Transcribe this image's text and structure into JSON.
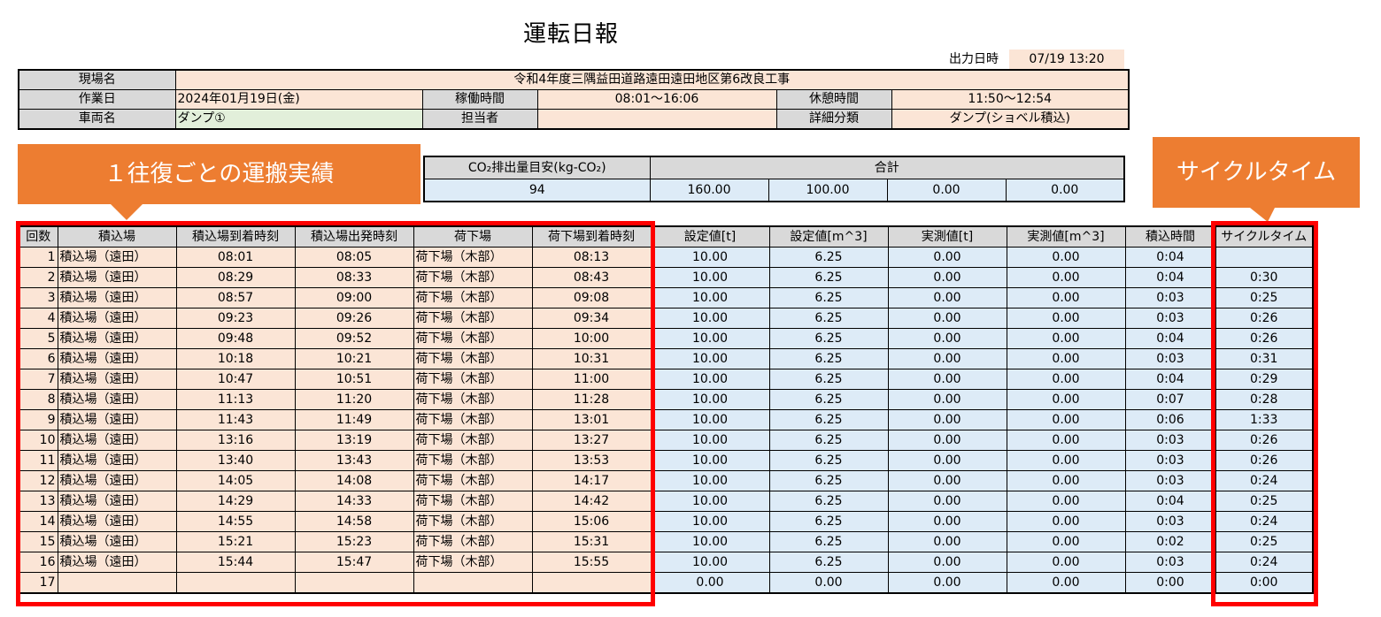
{
  "title": "運転日報",
  "output": {
    "label": "出力日時",
    "value": "07/19 13:20"
  },
  "info": {
    "site_label": "現場名",
    "site_value": "令和4年度三隅益田道路遠田遠田地区第6改良工事",
    "workday_label": "作業日",
    "workday_value": "2024年01月19日(金)",
    "operating_label": "稼働時間",
    "operating_value": "08:01～16:06",
    "rest_label": "休憩時間",
    "rest_value": "11:50～12:54",
    "vehicle_label": "車両名",
    "vehicle_value": "ダンプ①",
    "person_label": "担当者",
    "person_value": "",
    "category_label": "詳細分類",
    "category_value": "ダンプ(ショベル積込)"
  },
  "co2": {
    "label": "CO₂排出量目安(kg-CO₂)",
    "value": "94",
    "total_label": "合計",
    "totals": [
      "160.00",
      "100.00",
      "0.00",
      "0.00"
    ]
  },
  "callouts": {
    "left": "１往復ごとの運搬実績",
    "right": "サイクルタイム"
  },
  "table": {
    "headers": [
      "回数",
      "積込場",
      "積込場到着時刻",
      "積込場出発時刻",
      "荷下場",
      "荷下場到着時刻",
      "設定値[t]",
      "設定値[m^3]",
      "実測値[t]",
      "実測値[m^3]",
      "積込時間",
      "サイクルタイム"
    ],
    "rows": [
      [
        "1",
        "積込場（遠田）",
        "08:01",
        "08:05",
        "荷下場（木部）",
        "08:13",
        "10.00",
        "6.25",
        "0.00",
        "0.00",
        "0:04",
        ""
      ],
      [
        "2",
        "積込場（遠田）",
        "08:29",
        "08:33",
        "荷下場（木部）",
        "08:43",
        "10.00",
        "6.25",
        "0.00",
        "0.00",
        "0:04",
        "0:30"
      ],
      [
        "3",
        "積込場（遠田）",
        "08:57",
        "09:00",
        "荷下場（木部）",
        "09:08",
        "10.00",
        "6.25",
        "0.00",
        "0.00",
        "0:03",
        "0:25"
      ],
      [
        "4",
        "積込場（遠田）",
        "09:23",
        "09:26",
        "荷下場（木部）",
        "09:34",
        "10.00",
        "6.25",
        "0.00",
        "0.00",
        "0:03",
        "0:26"
      ],
      [
        "5",
        "積込場（遠田）",
        "09:48",
        "09:52",
        "荷下場（木部）",
        "10:00",
        "10.00",
        "6.25",
        "0.00",
        "0.00",
        "0:04",
        "0:26"
      ],
      [
        "6",
        "積込場（遠田）",
        "10:18",
        "10:21",
        "荷下場（木部）",
        "10:31",
        "10.00",
        "6.25",
        "0.00",
        "0.00",
        "0:03",
        "0:31"
      ],
      [
        "7",
        "積込場（遠田）",
        "10:47",
        "10:51",
        "荷下場（木部）",
        "11:00",
        "10.00",
        "6.25",
        "0.00",
        "0.00",
        "0:04",
        "0:29"
      ],
      [
        "8",
        "積込場（遠田）",
        "11:13",
        "11:20",
        "荷下場（木部）",
        "11:28",
        "10.00",
        "6.25",
        "0.00",
        "0.00",
        "0:07",
        "0:28"
      ],
      [
        "9",
        "積込場（遠田）",
        "11:43",
        "11:49",
        "荷下場（木部）",
        "13:01",
        "10.00",
        "6.25",
        "0.00",
        "0.00",
        "0:06",
        "1:33"
      ],
      [
        "10",
        "積込場（遠田）",
        "13:16",
        "13:19",
        "荷下場（木部）",
        "13:27",
        "10.00",
        "6.25",
        "0.00",
        "0.00",
        "0:03",
        "0:26"
      ],
      [
        "11",
        "積込場（遠田）",
        "13:40",
        "13:43",
        "荷下場（木部）",
        "13:53",
        "10.00",
        "6.25",
        "0.00",
        "0.00",
        "0:03",
        "0:26"
      ],
      [
        "12",
        "積込場（遠田）",
        "14:05",
        "14:08",
        "荷下場（木部）",
        "14:17",
        "10.00",
        "6.25",
        "0.00",
        "0.00",
        "0:03",
        "0:24"
      ],
      [
        "13",
        "積込場（遠田）",
        "14:29",
        "14:33",
        "荷下場（木部）",
        "14:42",
        "10.00",
        "6.25",
        "0.00",
        "0.00",
        "0:04",
        "0:25"
      ],
      [
        "14",
        "積込場（遠田）",
        "14:55",
        "14:58",
        "荷下場（木部）",
        "15:06",
        "10.00",
        "6.25",
        "0.00",
        "0.00",
        "0:03",
        "0:24"
      ],
      [
        "15",
        "積込場（遠田）",
        "15:21",
        "15:23",
        "荷下場（木部）",
        "15:31",
        "10.00",
        "6.25",
        "0.00",
        "0.00",
        "0:02",
        "0:25"
      ],
      [
        "16",
        "積込場（遠田）",
        "15:44",
        "15:47",
        "荷下場（木部）",
        "15:55",
        "10.00",
        "6.25",
        "0.00",
        "0.00",
        "0:03",
        "0:24"
      ],
      [
        "17",
        "",
        "",
        "",
        "",
        "",
        "0.00",
        "0.00",
        "0.00",
        "0.00",
        "0:00",
        "0:00"
      ]
    ]
  },
  "colors": {
    "header_gray": "#d9d9d9",
    "cell_pink": "#fbe5d6",
    "cell_blue": "#ddebf7",
    "cell_green": "#e2efda",
    "callout_orange": "#ed7d31",
    "highlight_red": "#ff0000"
  }
}
